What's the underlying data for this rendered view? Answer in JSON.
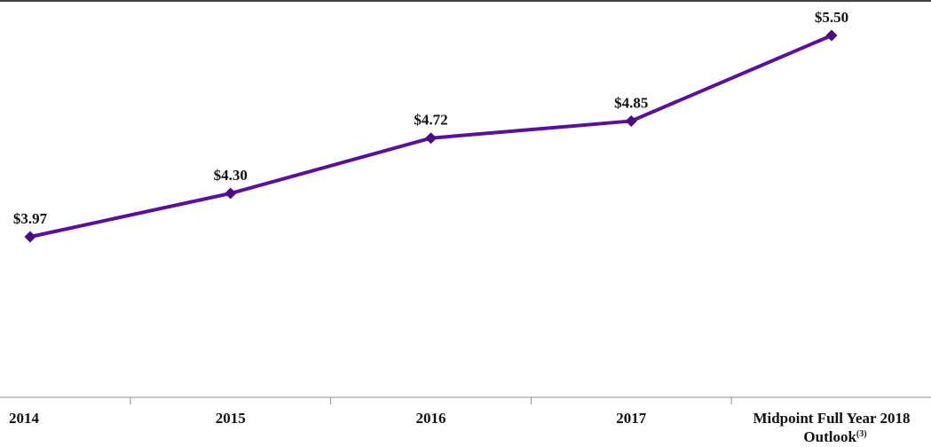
{
  "colors": {
    "line": "#5b0f9e",
    "marker": "#4a0a86",
    "axis": "#8c8c8c",
    "top_border": "#000000",
    "text": "#111111"
  },
  "chart_data": {
    "type": "line",
    "categories": [
      "2014",
      "2015",
      "2016",
      "2017",
      "Midpoint Full Year 2018"
    ],
    "category_suffix": {
      "index": 4,
      "line2": "Outlook",
      "superscript": "(3)"
    },
    "series": [
      {
        "values": [
          3.97,
          4.3,
          4.72,
          4.85,
          5.5
        ],
        "data_labels": [
          "$3.97",
          "$4.30",
          "$4.72",
          "$4.85",
          "$5.50"
        ],
        "marker": "diamond"
      }
    ],
    "title": "",
    "xlabel": "",
    "ylabel": "",
    "ylim": [
      2.6,
      5.7
    ],
    "grid": false,
    "legend": "none"
  }
}
